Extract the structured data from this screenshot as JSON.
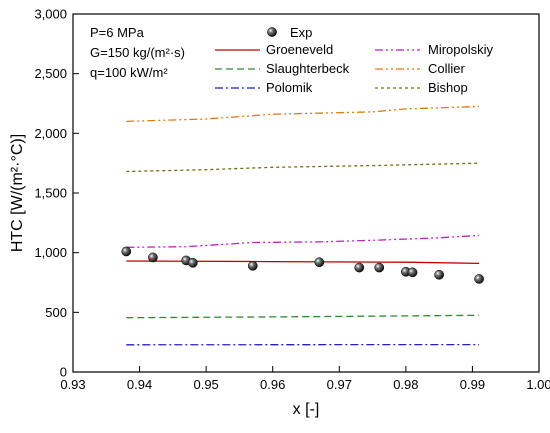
{
  "chart_data": {
    "type": "line",
    "xlabel": "x [-]",
    "ylabel": "HTC [W/(m²·°C)]",
    "xlim": [
      0.93,
      1.0
    ],
    "ylim": [
      0,
      3000
    ],
    "xticks": [
      "0.93",
      "0.94",
      "0.95",
      "0.96",
      "0.97",
      "0.98",
      "0.99",
      "1.00"
    ],
    "yticks": [
      "0",
      "500",
      "1,000",
      "1,500",
      "2,000",
      "2,500",
      "3,000"
    ],
    "grid": false,
    "legend_position": "top-right",
    "conditions": [
      "P=6 MPa",
      "G=150 kg/(m²·s)",
      "q=100 kW/m²"
    ],
    "scatter": {
      "name": "Exp",
      "color": "#111111",
      "x": [
        0.938,
        0.942,
        0.947,
        0.948,
        0.957,
        0.967,
        0.973,
        0.976,
        0.98,
        0.981,
        0.985,
        0.991
      ],
      "y": [
        1010,
        960,
        935,
        915,
        890,
        920,
        875,
        875,
        840,
        835,
        815,
        780
      ]
    },
    "series": [
      {
        "name": "Groeneveld",
        "color": "#c00000",
        "dash": "solid",
        "x": [
          0.938,
          0.96,
          0.98,
          0.991
        ],
        "y": [
          930,
          925,
          920,
          910
        ]
      },
      {
        "name": "Slaughterbeck",
        "color": "#2e8b2e",
        "dash": "dash",
        "x": [
          0.938,
          0.96,
          0.98,
          0.991
        ],
        "y": [
          455,
          462,
          470,
          475
        ]
      },
      {
        "name": "Polomik",
        "color": "#1f1fcc",
        "dash": "dashdot",
        "x": [
          0.938,
          0.96,
          0.98,
          0.991
        ],
        "y": [
          228,
          229,
          230,
          230
        ]
      },
      {
        "name": "Miropolskiy",
        "color": "#c020c0",
        "dash": "dashdotdot",
        "x": [
          0.938,
          0.947,
          0.957,
          0.967,
          0.976,
          0.985,
          0.991
        ],
        "y": [
          1045,
          1050,
          1085,
          1090,
          1105,
          1125,
          1145
        ]
      },
      {
        "name": "Collier",
        "color": "#e07a10",
        "dash": "dashdotdot",
        "x": [
          0.938,
          0.95,
          0.96,
          0.975,
          0.98,
          0.991
        ],
        "y": [
          2100,
          2120,
          2160,
          2180,
          2205,
          2225
        ]
      },
      {
        "name": "Bishop",
        "color": "#707010",
        "dash": "dot",
        "x": [
          0.938,
          0.95,
          0.96,
          0.975,
          0.991
        ],
        "y": [
          1680,
          1695,
          1715,
          1730,
          1750
        ]
      }
    ]
  }
}
